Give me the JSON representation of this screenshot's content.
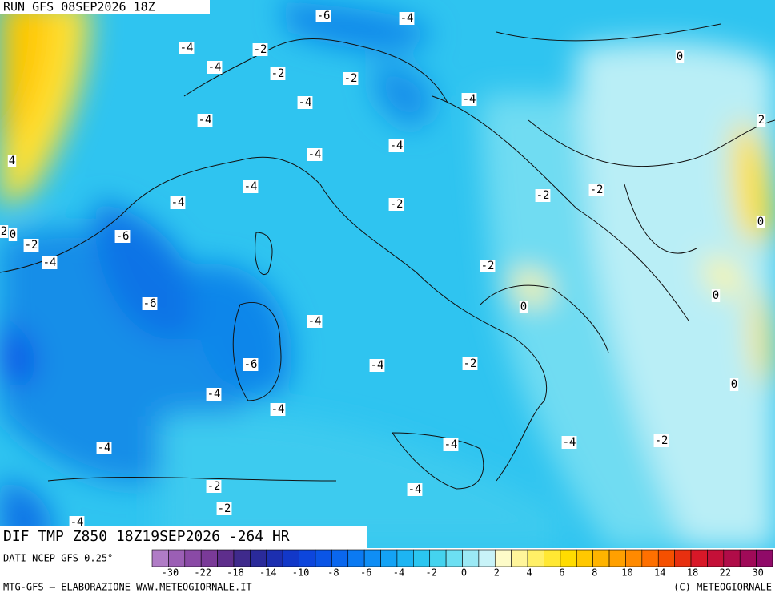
{
  "header": {
    "run": "RUN GFS 08SEP2026 18Z",
    "field": "DIF TMP Z850 18Z19SEP2026 -264 HR",
    "source": "DATI NCEP GFS 0.25°"
  },
  "contour_labels": [
    -6,
    -4,
    -4,
    -2,
    -4,
    -2,
    -2,
    -4,
    -4,
    -4,
    -4,
    -4,
    4,
    -4,
    -2,
    -2,
    -4,
    -2,
    0,
    2,
    0,
    -2,
    -6,
    -4,
    -2,
    -6,
    0,
    0,
    -4,
    -6,
    -4,
    -2,
    0,
    -4,
    -4,
    -4,
    -4,
    -2,
    -4,
    -2,
    -4,
    -2,
    -4,
    0,
    2
  ],
  "colorbar": {
    "ticks": [
      -30,
      -22,
      -18,
      -14,
      -10,
      -8,
      -6,
      -4,
      -2,
      0,
      2,
      4,
      6,
      8,
      10,
      14,
      18,
      22,
      30
    ],
    "colors": [
      "#b07cc6",
      "#9b5fb5",
      "#8a4aa6",
      "#7a3a98",
      "#5e2e8c",
      "#3f2a8c",
      "#2a2a9a",
      "#1c2fb0",
      "#1238c8",
      "#0d46dc",
      "#0a55e6",
      "#0a67ee",
      "#0b7af2",
      "#0f8ef5",
      "#14a3f5",
      "#1db5f3",
      "#2bc6f0",
      "#44d3ef",
      "#6cdff2",
      "#9be9f5",
      "#c8f3f8",
      "#fdfbc8",
      "#fff59a",
      "#fff066",
      "#ffe833",
      "#ffdc00",
      "#ffc800",
      "#ffb400",
      "#ffa000",
      "#ff8a00",
      "#ff7000",
      "#f55000",
      "#e83010",
      "#d81828",
      "#c41038",
      "#b00c48",
      "#a00a58",
      "#900a68"
    ]
  },
  "footer": {
    "left": "MTG-GFS — ELABORAZIONE WWW.METEOGIORNALE.IT",
    "right": "(C) METEOGIORNALE"
  }
}
